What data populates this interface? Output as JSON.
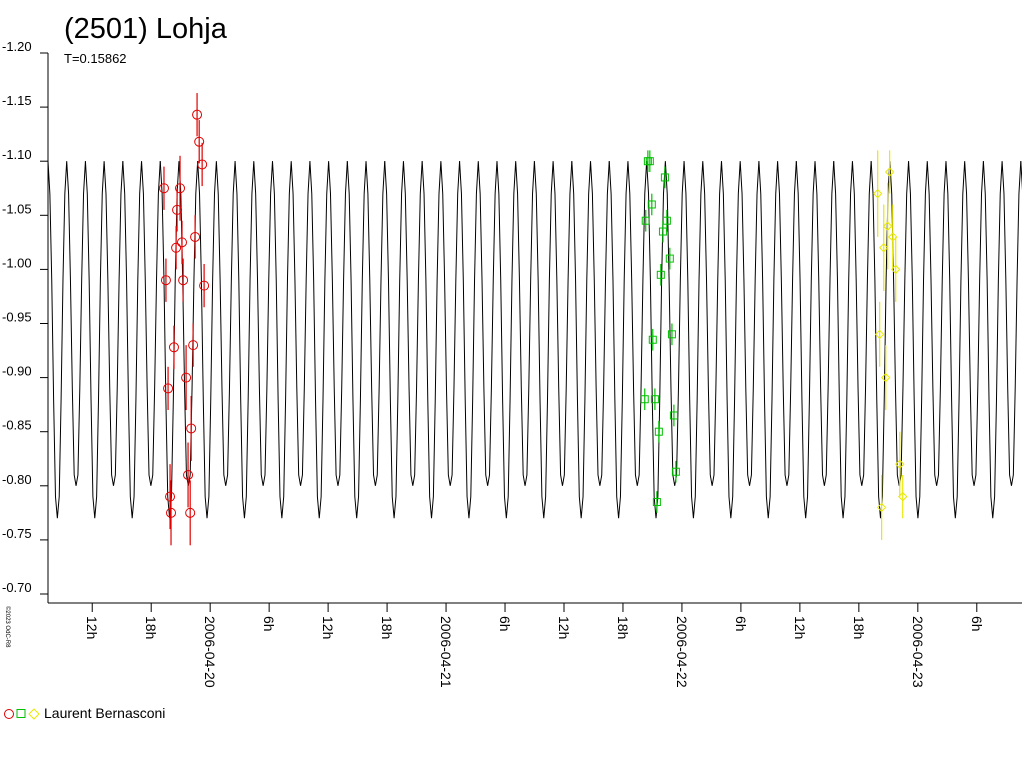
{
  "chart_data": {
    "type": "lightcurve",
    "title": "(2501) Lohja",
    "subtitle": "T=0.15862",
    "credit": "©2023 OdC-R8",
    "legend": "Laurent Bernasconi",
    "ylim": [
      -1.2,
      -0.7
    ],
    "yticks": [
      {
        "value": -1.2,
        "label": "-1.20"
      },
      -1.15,
      {
        "value": -1.1,
        "label": "-1.10"
      },
      -1.05,
      {
        "value": -1.0,
        "label": "-1.00"
      },
      -0.95,
      {
        "value": -0.9,
        "label": "-0.90"
      },
      -0.85,
      {
        "value": -0.8,
        "label": "-0.80"
      },
      -0.75,
      {
        "value": -0.7,
        "label": "-0.70"
      }
    ],
    "xlim": [
      "2006-04-19T07:30",
      "2006-04-23T10:36"
    ],
    "xticks": [
      {
        "value": "2006-04-19T12:00",
        "label": "12h"
      },
      {
        "value": "2006-04-19T18:00",
        "label": "18h"
      },
      {
        "value": "2006-04-20T00:00",
        "label": "2006-04-20"
      },
      {
        "value": "2006-04-20T06:00",
        "label": "6h"
      },
      {
        "value": "2006-04-20T12:00",
        "label": "12h"
      },
      {
        "value": "2006-04-20T18:00",
        "label": "18h"
      },
      {
        "value": "2006-04-21T00:00",
        "label": "2006-04-21"
      },
      {
        "value": "2006-04-21T06:00",
        "label": "6h"
      },
      {
        "value": "2006-04-21T12:00",
        "label": "12h"
      },
      {
        "value": "2006-04-21T18:00",
        "label": "18h"
      },
      {
        "value": "2006-04-22T00:00",
        "label": "2006-04-22"
      },
      {
        "value": "2006-04-22T06:00",
        "label": "6h"
      },
      {
        "value": "2006-04-22T12:00",
        "label": "12h"
      },
      {
        "value": "2006-04-22T18:00",
        "label": "18h"
      },
      {
        "value": "2006-04-23T00:00",
        "label": "2006-04-23"
      },
      {
        "value": "2006-04-23T06:00",
        "label": "6h"
      }
    ],
    "model": {
      "color": "#000000",
      "period": 0.15862,
      "epoch": "2006-04-19T07:30",
      "shape": [
        -1.1,
        -1.07,
        -0.99,
        -0.88,
        -0.79,
        -0.77,
        -0.79,
        -0.88,
        -0.99,
        -1.07,
        -1.1,
        -1.07,
        -0.99,
        -0.89,
        -0.81,
        -0.8,
        -0.81,
        -0.89,
        -0.99,
        -1.07
      ]
    },
    "series": [
      {
        "color": "#e00000",
        "marker": "circle",
        "x": [
          "2006-04-19T19:18",
          "2006-04-19T19:30",
          "2006-04-19T19:43",
          "2006-04-19T19:55",
          "2006-04-19T20:01",
          "2006-04-19T20:19",
          "2006-04-19T20:32",
          "2006-04-19T20:38",
          "2006-04-19T20:56",
          "2006-04-19T21:08",
          "2006-04-19T21:15",
          "2006-04-19T21:33",
          "2006-04-19T21:45",
          "2006-04-19T21:58",
          "2006-04-19T22:04",
          "2006-04-19T22:16",
          "2006-04-19T22:28",
          "2006-04-19T22:40",
          "2006-04-19T22:53",
          "2006-04-19T23:11",
          "2006-04-19T23:23"
        ],
        "values": [
          -1.075,
          -0.99,
          -0.89,
          -0.79,
          -0.775,
          -0.928,
          -1.02,
          -1.055,
          -1.075,
          -1.025,
          -0.99,
          -0.9,
          -0.81,
          -0.775,
          -0.853,
          -0.93,
          -1.03,
          -1.143,
          -1.118,
          -1.097,
          -0.985
        ],
        "errors": [
          0.02,
          0.02,
          0.02,
          0.03,
          0.03,
          0.02,
          0.02,
          0.02,
          0.03,
          0.02,
          0.02,
          0.03,
          0.03,
          0.03,
          0.03,
          0.02,
          0.02,
          0.02,
          0.02,
          0.02,
          0.02
        ]
      },
      {
        "color": "#00c000",
        "marker": "square",
        "x": [
          "2006-04-21T20:13",
          "2006-04-21T20:19",
          "2006-04-21T20:32",
          "2006-04-21T20:44",
          "2006-04-21T20:56",
          "2006-04-21T21:02",
          "2006-04-21T21:15",
          "2006-04-21T21:27",
          "2006-04-21T21:39",
          "2006-04-21T21:51",
          "2006-04-21T22:04",
          "2006-04-21T22:16",
          "2006-04-21T22:28",
          "2006-04-21T22:46",
          "2006-04-21T22:59",
          "2006-04-21T23:11",
          "2006-04-21T23:23"
        ],
        "values": [
          -0.88,
          -1.045,
          -1.1,
          -1.1,
          -1.06,
          -0.935,
          -0.88,
          -0.785,
          -0.85,
          -0.995,
          -1.035,
          -1.085,
          -1.045,
          -1.01,
          -0.94,
          -0.865,
          -0.813
        ],
        "errors": [
          0.01,
          0.01,
          0.01,
          0.01,
          0.01,
          0.01,
          0.01,
          0.01,
          0.01,
          0.01,
          0.01,
          0.01,
          0.01,
          0.01,
          0.01,
          0.01,
          0.01
        ]
      },
      {
        "color": "#e8e800",
        "marker": "diamond",
        "x": [
          "2006-04-22T19:55",
          "2006-04-22T20:07",
          "2006-04-22T20:19",
          "2006-04-22T20:32",
          "2006-04-22T20:44",
          "2006-04-22T20:56",
          "2006-04-22T21:08",
          "2006-04-22T21:27",
          "2006-04-22T21:45",
          "2006-04-22T22:10",
          "2006-04-22T22:28"
        ],
        "values": [
          -1.07,
          -0.94,
          -0.78,
          -1.02,
          -0.9,
          -1.04,
          -1.09,
          -1.03,
          -1.0,
          -0.82,
          -0.79
        ],
        "errors": [
          0.04,
          0.03,
          0.03,
          0.04,
          0.03,
          0.04,
          0.02,
          0.03,
          0.03,
          0.03,
          0.02
        ]
      }
    ]
  }
}
